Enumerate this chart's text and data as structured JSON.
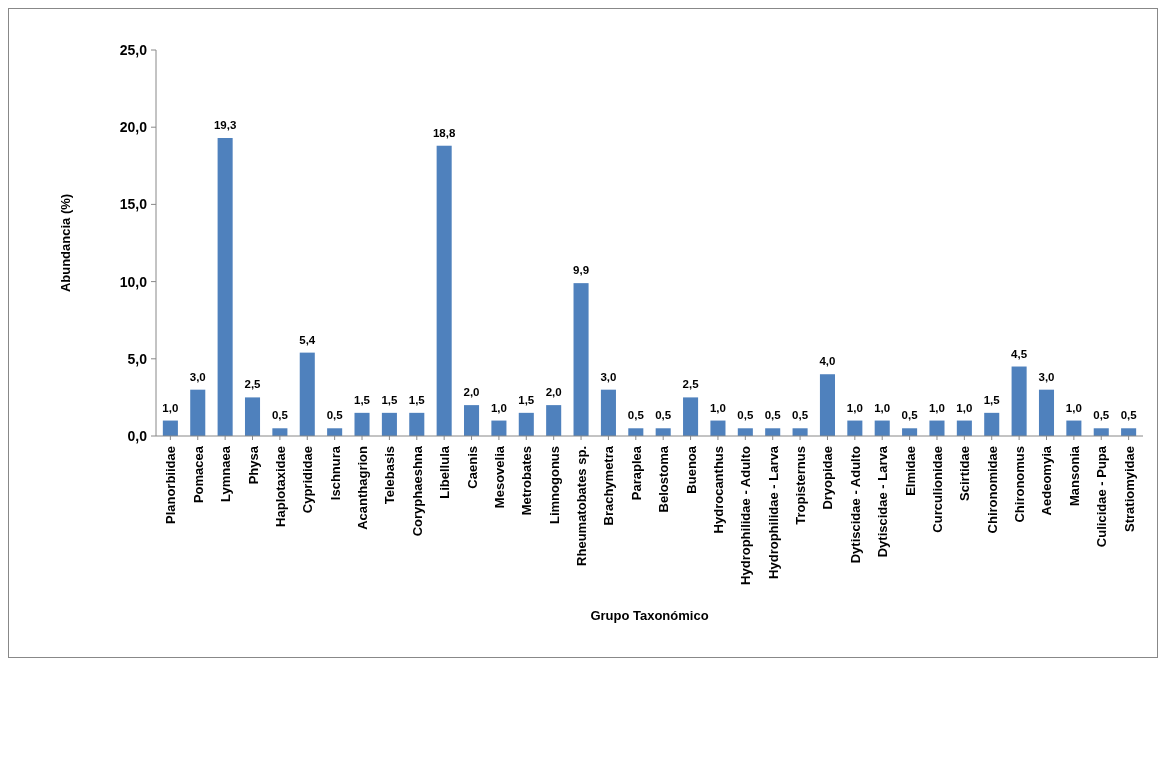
{
  "chart_data": {
    "type": "bar",
    "xlabel": "Grupo Taxonómico",
    "ylabel": "Abundancia (%)",
    "categories": [
      "Planorbiidae",
      "Pomacea",
      "Lymnaea",
      "Physa",
      "Haplotaxidae",
      "Cyprididae",
      "Ischnura",
      "Acanthagrion",
      "Telebasis",
      "Coryphaeshna",
      "Libellula",
      "Caenis",
      "Mesovelia",
      "Metrobates",
      "Limnogonus",
      "Rheumatobates sp.",
      "Brachymetra",
      "Paraplea",
      "Belostoma",
      "Buenoa",
      "Hydrocanthus",
      "Hydrophilidae - Adulto",
      "Hydrophilidae - Larva",
      "Tropisternus",
      "Dryopidae",
      "Dytiscidae - Adulto",
      "Dytiscidae - Larva",
      "Elmidae",
      "Curculionidae",
      "Scirtidae",
      "Chironomidae",
      "Chironomus",
      "Aedeomyia",
      "Mansonia",
      "Culicidae - Pupa",
      "Stratiomyidae"
    ],
    "values": [
      1.0,
      3.0,
      19.3,
      2.5,
      0.5,
      5.4,
      0.5,
      1.5,
      1.5,
      1.5,
      18.8,
      2.0,
      1.0,
      1.5,
      2.0,
      9.9,
      3.0,
      0.5,
      0.5,
      2.5,
      1.0,
      0.5,
      0.5,
      0.5,
      4.0,
      1.0,
      1.0,
      0.5,
      1.0,
      1.0,
      1.5,
      4.5,
      3.0,
      1.0,
      0.5,
      0.5
    ],
    "value_labels": [
      "1,0",
      "3,0",
      "19,3",
      "2,5",
      "0,5",
      "5,4",
      "0,5",
      "1,5",
      "1,5",
      "1,5",
      "18,8",
      "2,0",
      "1,0",
      "1,5",
      "2,0",
      "9,9",
      "3,0",
      "0,5",
      "0,5",
      "2,5",
      "1,0",
      "0,5",
      "0,5",
      "0,5",
      "4,0",
      "1,0",
      "1,0",
      "0,5",
      "1,0",
      "1,0",
      "1,5",
      "4,5",
      "3,0",
      "1,0",
      "0,5",
      "0,5"
    ],
    "color": "#4f81bd",
    "ylim": [
      0,
      25
    ],
    "yticks": [
      {
        "value": 0,
        "label": "0,0"
      },
      {
        "value": 5,
        "label": "5,0"
      },
      {
        "value": 10,
        "label": "10,0"
      },
      {
        "value": 15,
        "label": "15,0"
      },
      {
        "value": 20,
        "label": "20,0"
      },
      {
        "value": 25,
        "label": "25,0"
      }
    ]
  }
}
